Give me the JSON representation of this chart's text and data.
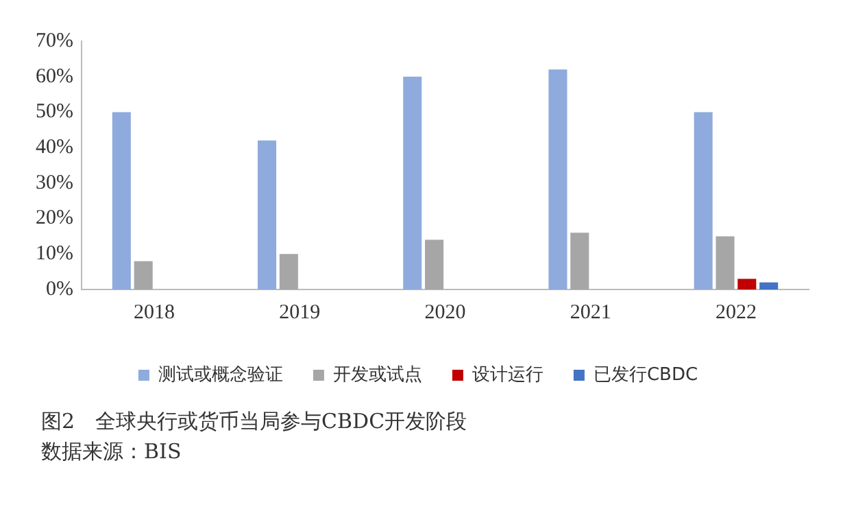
{
  "chart_data": {
    "type": "bar",
    "title": "图2　全球央行或货币当局参与CBDC开发阶段",
    "annotations": [
      "数据来源：BIS"
    ],
    "categories": [
      "2018",
      "2019",
      "2020",
      "2021",
      "2022"
    ],
    "series": [
      {
        "name": "测试或概念验证",
        "color": "#8faadc",
        "values": [
          50,
          42,
          60,
          62,
          50
        ]
      },
      {
        "name": "开发或试点",
        "color": "#a6a6a6",
        "values": [
          8,
          10,
          14,
          16,
          15
        ]
      },
      {
        "name": "设计运行",
        "color": "#c00000",
        "values": [
          null,
          null,
          null,
          null,
          3
        ]
      },
      {
        "name": "已发行CBDC",
        "color": "#4472c4",
        "values": [
          null,
          null,
          null,
          null,
          2
        ]
      }
    ],
    "ylim": [
      0,
      70
    ],
    "yticks": [
      {
        "value": 0,
        "label": "0%"
      },
      {
        "value": 10,
        "label": "10%"
      },
      {
        "value": 20,
        "label": "20%"
      },
      {
        "value": 30,
        "label": "30%"
      },
      {
        "value": 40,
        "label": "40%"
      },
      {
        "value": 50,
        "label": "50%"
      },
      {
        "value": 60,
        "label": "60%"
      },
      {
        "value": 70,
        "label": "70%"
      }
    ],
    "grid": false,
    "legend": "bottom"
  }
}
